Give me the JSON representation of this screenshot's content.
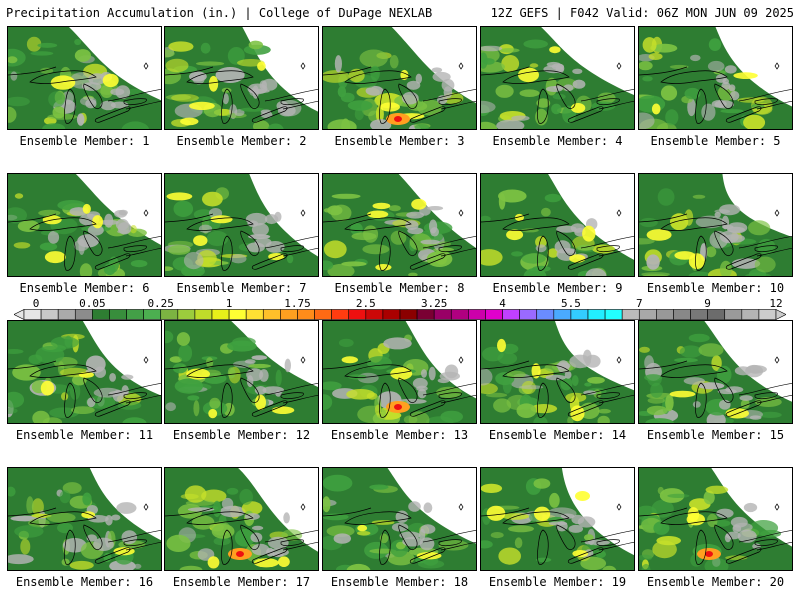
{
  "header": {
    "left_title": "Precipitation Accumulation (in.) | College of DuPage NEXLAB",
    "right_title": "12Z GEFS | F042 Valid: 06Z MON JUN 09 2025"
  },
  "panel_label_prefix": "Ensemble Member: ",
  "members": [
    {
      "number": 1,
      "label": "Ensemble Member: 1"
    },
    {
      "number": 2,
      "label": "Ensemble Member: 2"
    },
    {
      "number": 3,
      "label": "Ensemble Member: 3"
    },
    {
      "number": 4,
      "label": "Ensemble Member: 4"
    },
    {
      "number": 5,
      "label": "Ensemble Member: 5"
    },
    {
      "number": 6,
      "label": "Ensemble Member: 6"
    },
    {
      "number": 7,
      "label": "Ensemble Member: 7"
    },
    {
      "number": 8,
      "label": "Ensemble Member: 8"
    },
    {
      "number": 9,
      "label": "Ensemble Member: 9"
    },
    {
      "number": 10,
      "label": "Ensemble Member: 10"
    },
    {
      "number": 11,
      "label": "Ensemble Member: 11"
    },
    {
      "number": 12,
      "label": "Ensemble Member: 12"
    },
    {
      "number": 13,
      "label": "Ensemble Member: 13"
    },
    {
      "number": 14,
      "label": "Ensemble Member: 14"
    },
    {
      "number": 15,
      "label": "Ensemble Member: 15"
    },
    {
      "number": 16,
      "label": "Ensemble Member: 16"
    },
    {
      "number": 17,
      "label": "Ensemble Member: 17"
    },
    {
      "number": 18,
      "label": "Ensemble Member: 18"
    },
    {
      "number": 19,
      "label": "Ensemble Member: 19"
    },
    {
      "number": 20,
      "label": "Ensemble Member: 20"
    }
  ],
  "colorbar": {
    "tick_labels": [
      "0",
      "0.05",
      "0.25",
      "1",
      "1.75",
      "2.5",
      "3.25",
      "4",
      "5.5",
      "7",
      "9",
      "12"
    ],
    "bins": [
      "#e6e6e6",
      "#c8c8c8",
      "#aaaaaa",
      "#8c8c8c",
      "#2e7d32",
      "#388e3c",
      "#43a047",
      "#4caf50",
      "#7cb342",
      "#9ccc3d",
      "#c0dc2a",
      "#e8ef1a",
      "#ffff33",
      "#ffe033",
      "#ffc02a",
      "#ffa020",
      "#ff8c1a",
      "#ff6a14",
      "#ff3c10",
      "#ee1010",
      "#cc0808",
      "#aa0000",
      "#8b0000",
      "#7a0033",
      "#990066",
      "#b00080",
      "#cc00aa",
      "#e000cc",
      "#c040ff",
      "#9a6aff",
      "#6a8cff",
      "#4aaaff",
      "#33ccff",
      "#22eeff",
      "#22ffff",
      "#bbbbbb",
      "#a8a8a8",
      "#989898",
      "#888888",
      "#787878",
      "#6c6c6c",
      "#9a9a9a",
      "#b4b4b4",
      "#cccccc"
    ]
  },
  "colors": {
    "map_background": "#ffffff",
    "coast_line": "#000000",
    "dark_green": "#2e7d32",
    "mid_green": "#3fa03f",
    "light_green": "#7cc242",
    "yellow_green": "#c6e02a",
    "yellow": "#ffff33",
    "orange": "#ffa020",
    "red": "#ee1010",
    "gray": "#b4b4b4"
  }
}
